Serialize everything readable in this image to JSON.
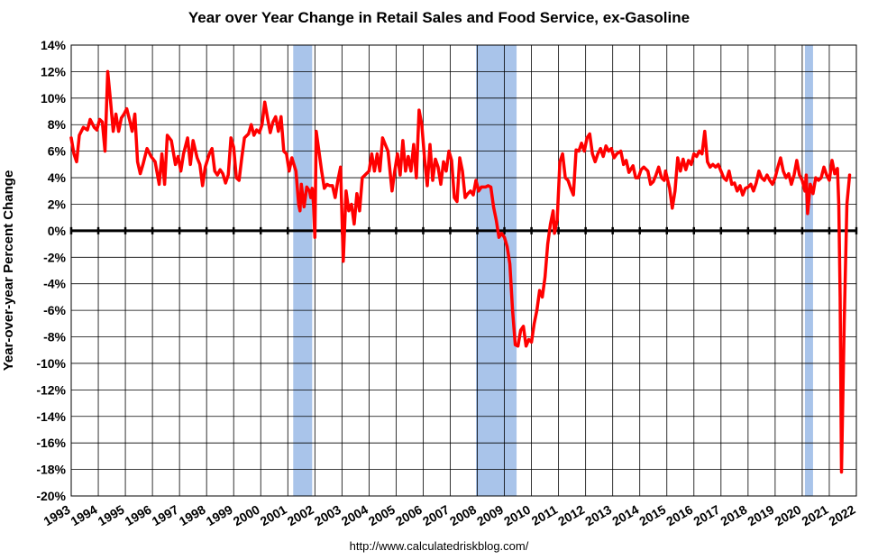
{
  "chart_data": {
    "type": "line",
    "title": "Year over Year Change in Retail Sales and Food Service, ex-Gasoline",
    "xlabel": "",
    "ylabel": "Year-over-year Percent Change",
    "source": "http://www.calculatedriskblog.com/",
    "xlim": [
      1993,
      2022
    ],
    "ylim": [
      -20,
      14
    ],
    "x_ticks": [
      "1993",
      "1994",
      "1995",
      "1996",
      "1997",
      "1998",
      "1999",
      "2000",
      "2001",
      "2002",
      "2003",
      "2004",
      "2005",
      "2006",
      "2007",
      "2008",
      "2009",
      "2010",
      "2011",
      "2012",
      "2013",
      "2014",
      "2015",
      "2016",
      "2017",
      "2018",
      "2019",
      "2020",
      "2021",
      "2022"
    ],
    "y_ticks": [
      "14%",
      "12%",
      "10%",
      "8%",
      "6%",
      "4%",
      "2%",
      "0%",
      "-2%",
      "-4%",
      "-6%",
      "-8%",
      "-10%",
      "-12%",
      "-14%",
      "-16%",
      "-18%",
      "-20%"
    ],
    "grid": true,
    "zero_line": true,
    "recessions": [
      {
        "start": 2001.2,
        "end": 2001.9
      },
      {
        "start": 2007.95,
        "end": 2009.45
      },
      {
        "start": 2020.1,
        "end": 2020.4
      }
    ],
    "recession_color": "#a9c4ea",
    "series": [
      {
        "color": "#ff0000",
        "points": [
          [
            1993.0,
            7.0
          ],
          [
            1993.1,
            5.8
          ],
          [
            1993.2,
            5.2
          ],
          [
            1993.3,
            7.2
          ],
          [
            1993.45,
            7.8
          ],
          [
            1993.6,
            7.6
          ],
          [
            1993.7,
            8.4
          ],
          [
            1993.85,
            7.8
          ],
          [
            1993.95,
            7.6
          ],
          [
            1994.05,
            8.4
          ],
          [
            1994.15,
            8.2
          ],
          [
            1994.25,
            6.0
          ],
          [
            1994.35,
            12.0
          ],
          [
            1994.45,
            9.8
          ],
          [
            1994.55,
            7.5
          ],
          [
            1994.65,
            8.8
          ],
          [
            1994.75,
            7.5
          ],
          [
            1994.85,
            8.5
          ],
          [
            1994.95,
            8.8
          ],
          [
            1995.05,
            9.2
          ],
          [
            1995.15,
            8.4
          ],
          [
            1995.25,
            7.5
          ],
          [
            1995.35,
            8.8
          ],
          [
            1995.45,
            5.2
          ],
          [
            1995.55,
            4.3
          ],
          [
            1995.65,
            5.0
          ],
          [
            1995.8,
            6.2
          ],
          [
            1995.95,
            5.6
          ],
          [
            1996.1,
            5.2
          ],
          [
            1996.25,
            3.5
          ],
          [
            1996.35,
            5.8
          ],
          [
            1996.45,
            3.5
          ],
          [
            1996.55,
            7.2
          ],
          [
            1996.7,
            6.8
          ],
          [
            1996.85,
            5.0
          ],
          [
            1996.95,
            5.6
          ],
          [
            1997.05,
            4.5
          ],
          [
            1997.15,
            5.8
          ],
          [
            1997.3,
            7.0
          ],
          [
            1997.4,
            5.0
          ],
          [
            1997.5,
            6.8
          ],
          [
            1997.65,
            5.5
          ],
          [
            1997.75,
            5.0
          ],
          [
            1997.85,
            3.4
          ],
          [
            1997.95,
            4.8
          ],
          [
            1998.1,
            5.8
          ],
          [
            1998.2,
            6.2
          ],
          [
            1998.3,
            4.5
          ],
          [
            1998.4,
            4.2
          ],
          [
            1998.5,
            4.6
          ],
          [
            1998.6,
            4.3
          ],
          [
            1998.7,
            3.6
          ],
          [
            1998.8,
            4.2
          ],
          [
            1998.9,
            7.0
          ],
          [
            1999.0,
            6.3
          ],
          [
            1999.1,
            4.0
          ],
          [
            1999.2,
            3.8
          ],
          [
            1999.3,
            5.5
          ],
          [
            1999.4,
            7.0
          ],
          [
            1999.55,
            7.3
          ],
          [
            1999.65,
            8.0
          ],
          [
            1999.75,
            7.2
          ],
          [
            1999.85,
            7.6
          ],
          [
            1999.95,
            7.4
          ],
          [
            2000.05,
            8.0
          ],
          [
            2000.15,
            9.7
          ],
          [
            2000.25,
            8.5
          ],
          [
            2000.35,
            7.4
          ],
          [
            2000.45,
            8.2
          ],
          [
            2000.55,
            8.6
          ],
          [
            2000.65,
            7.5
          ],
          [
            2000.75,
            8.6
          ],
          [
            2000.85,
            6.0
          ],
          [
            2000.95,
            5.8
          ],
          [
            2001.05,
            4.5
          ],
          [
            2001.15,
            5.5
          ],
          [
            2001.3,
            4.5
          ],
          [
            2001.4,
            2.0
          ],
          [
            2001.45,
            1.5
          ],
          [
            2001.5,
            3.5
          ],
          [
            2001.6,
            1.8
          ],
          [
            2001.7,
            3.3
          ],
          [
            2001.8,
            3.0
          ],
          [
            2001.85,
            2.5
          ],
          [
            2001.9,
            3.2
          ],
          [
            2001.95,
            2.0
          ],
          [
            2002.0,
            -0.5
          ],
          [
            2002.05,
            7.5
          ],
          [
            2002.15,
            6.0
          ],
          [
            2002.25,
            4.5
          ],
          [
            2002.35,
            3.2
          ],
          [
            2002.45,
            3.5
          ],
          [
            2002.55,
            3.4
          ],
          [
            2002.65,
            3.4
          ],
          [
            2002.75,
            2.5
          ],
          [
            2002.85,
            3.8
          ],
          [
            2002.95,
            4.8
          ],
          [
            2003.05,
            -2.3
          ],
          [
            2003.15,
            3.0
          ],
          [
            2003.25,
            1.5
          ],
          [
            2003.35,
            2.0
          ],
          [
            2003.45,
            0.5
          ],
          [
            2003.55,
            2.8
          ],
          [
            2003.65,
            1.5
          ],
          [
            2003.75,
            4.0
          ],
          [
            2003.9,
            4.3
          ],
          [
            2004.0,
            4.5
          ],
          [
            2004.1,
            5.8
          ],
          [
            2004.2,
            4.5
          ],
          [
            2004.3,
            5.8
          ],
          [
            2004.4,
            4.5
          ],
          [
            2004.5,
            7.0
          ],
          [
            2004.6,
            6.5
          ],
          [
            2004.7,
            6.0
          ],
          [
            2004.8,
            4.0
          ],
          [
            2004.85,
            3.0
          ],
          [
            2004.95,
            4.5
          ],
          [
            2005.05,
            5.8
          ],
          [
            2005.15,
            4.2
          ],
          [
            2005.25,
            6.8
          ],
          [
            2005.35,
            4.5
          ],
          [
            2005.45,
            5.6
          ],
          [
            2005.55,
            4.5
          ],
          [
            2005.65,
            6.5
          ],
          [
            2005.75,
            4.0
          ],
          [
            2005.85,
            9.1
          ],
          [
            2005.95,
            8.0
          ],
          [
            2006.05,
            5.5
          ],
          [
            2006.15,
            3.4
          ],
          [
            2006.25,
            6.5
          ],
          [
            2006.35,
            3.8
          ],
          [
            2006.45,
            5.4
          ],
          [
            2006.55,
            4.8
          ],
          [
            2006.65,
            3.5
          ],
          [
            2006.75,
            5.2
          ],
          [
            2006.85,
            4.5
          ],
          [
            2006.95,
            6.0
          ],
          [
            2007.05,
            5.3
          ],
          [
            2007.15,
            2.5
          ],
          [
            2007.25,
            2.2
          ],
          [
            2007.35,
            5.5
          ],
          [
            2007.45,
            4.5
          ],
          [
            2007.55,
            2.5
          ],
          [
            2007.65,
            2.8
          ],
          [
            2007.75,
            3.0
          ],
          [
            2007.85,
            2.7
          ],
          [
            2007.95,
            3.8
          ],
          [
            2008.05,
            3.0
          ],
          [
            2008.15,
            3.3
          ],
          [
            2008.3,
            3.3
          ],
          [
            2008.4,
            3.4
          ],
          [
            2008.5,
            3.3
          ],
          [
            2008.6,
            1.8
          ],
          [
            2008.7,
            0.8
          ],
          [
            2008.8,
            -0.5
          ],
          [
            2008.9,
            -0.2
          ],
          [
            2009.0,
            -0.5
          ],
          [
            2009.1,
            -1.2
          ],
          [
            2009.2,
            -2.5
          ],
          [
            2009.3,
            -6.0
          ],
          [
            2009.4,
            -8.6
          ],
          [
            2009.5,
            -8.7
          ],
          [
            2009.6,
            -7.5
          ],
          [
            2009.7,
            -7.2
          ],
          [
            2009.8,
            -8.7
          ],
          [
            2009.9,
            -8.2
          ],
          [
            2010.0,
            -8.4
          ],
          [
            2010.1,
            -7.0
          ],
          [
            2010.2,
            -6.0
          ],
          [
            2010.3,
            -4.5
          ],
          [
            2010.4,
            -5.0
          ],
          [
            2010.5,
            -3.5
          ],
          [
            2010.6,
            -1.0
          ],
          [
            2010.7,
            0.5
          ],
          [
            2010.8,
            1.5
          ],
          [
            2010.85,
            -0.2
          ],
          [
            2010.95,
            0.8
          ],
          [
            2011.05,
            5.2
          ],
          [
            2011.15,
            5.8
          ],
          [
            2011.25,
            4.0
          ],
          [
            2011.35,
            3.8
          ],
          [
            2011.45,
            3.2
          ],
          [
            2011.55,
            2.7
          ],
          [
            2011.65,
            6.1
          ],
          [
            2011.75,
            6.0
          ],
          [
            2011.85,
            6.6
          ],
          [
            2011.95,
            6.0
          ],
          [
            2012.05,
            7.0
          ],
          [
            2012.15,
            7.3
          ],
          [
            2012.25,
            5.8
          ],
          [
            2012.35,
            5.2
          ],
          [
            2012.45,
            5.8
          ],
          [
            2012.55,
            6.2
          ],
          [
            2012.65,
            5.6
          ],
          [
            2012.75,
            6.4
          ],
          [
            2012.85,
            6.0
          ],
          [
            2012.95,
            6.2
          ],
          [
            2013.05,
            5.5
          ],
          [
            2013.15,
            5.8
          ],
          [
            2013.3,
            6.0
          ],
          [
            2013.4,
            5.0
          ],
          [
            2013.5,
            5.3
          ],
          [
            2013.6,
            4.4
          ],
          [
            2013.75,
            4.9
          ],
          [
            2013.85,
            4.0
          ],
          [
            2013.95,
            4.0
          ],
          [
            2014.05,
            4.6
          ],
          [
            2014.15,
            4.8
          ],
          [
            2014.3,
            4.5
          ],
          [
            2014.4,
            3.5
          ],
          [
            2014.5,
            3.7
          ],
          [
            2014.6,
            4.2
          ],
          [
            2014.7,
            4.8
          ],
          [
            2014.8,
            4.0
          ],
          [
            2014.9,
            3.8
          ],
          [
            2014.95,
            4.5
          ],
          [
            2015.1,
            3.2
          ],
          [
            2015.2,
            1.7
          ],
          [
            2015.3,
            3.0
          ],
          [
            2015.4,
            5.5
          ],
          [
            2015.5,
            4.5
          ],
          [
            2015.6,
            5.4
          ],
          [
            2015.7,
            4.6
          ],
          [
            2015.8,
            5.3
          ],
          [
            2015.9,
            5.0
          ],
          [
            2016.0,
            5.8
          ],
          [
            2016.1,
            5.6
          ],
          [
            2016.2,
            6.0
          ],
          [
            2016.3,
            5.8
          ],
          [
            2016.4,
            7.5
          ],
          [
            2016.5,
            5.2
          ],
          [
            2016.6,
            4.8
          ],
          [
            2016.7,
            5.0
          ],
          [
            2016.8,
            4.8
          ],
          [
            2016.9,
            5.0
          ],
          [
            2017.0,
            4.5
          ],
          [
            2017.1,
            4.0
          ],
          [
            2017.2,
            3.8
          ],
          [
            2017.3,
            4.5
          ],
          [
            2017.4,
            3.5
          ],
          [
            2017.5,
            3.6
          ],
          [
            2017.6,
            3.0
          ],
          [
            2017.7,
            3.4
          ],
          [
            2017.8,
            2.7
          ],
          [
            2017.9,
            3.2
          ],
          [
            2018.0,
            3.3
          ],
          [
            2018.1,
            3.5
          ],
          [
            2018.2,
            3.0
          ],
          [
            2018.3,
            3.6
          ],
          [
            2018.4,
            4.5
          ],
          [
            2018.5,
            4.0
          ],
          [
            2018.6,
            3.8
          ],
          [
            2018.7,
            4.2
          ],
          [
            2018.8,
            3.8
          ],
          [
            2018.9,
            3.5
          ],
          [
            2019.0,
            4.0
          ],
          [
            2019.1,
            4.8
          ],
          [
            2019.2,
            5.5
          ],
          [
            2019.3,
            4.5
          ],
          [
            2019.4,
            4.0
          ],
          [
            2019.5,
            4.3
          ],
          [
            2019.6,
            3.5
          ],
          [
            2019.7,
            4.2
          ],
          [
            2019.8,
            5.3
          ],
          [
            2019.9,
            4.2
          ],
          [
            2020.0,
            3.8
          ],
          [
            2020.1,
            3.0
          ],
          [
            2020.15,
            4.2
          ],
          [
            2020.2,
            1.3
          ],
          [
            2020.3,
            3.5
          ],
          [
            2020.4,
            2.8
          ],
          [
            2020.5,
            4.0
          ],
          [
            2020.6,
            3.8
          ],
          [
            2020.7,
            4.0
          ],
          [
            2020.8,
            4.8
          ],
          [
            2020.9,
            4.2
          ],
          [
            2021.0,
            3.8
          ],
          [
            2021.1,
            5.3
          ],
          [
            2021.2,
            4.3
          ],
          [
            2021.3,
            4.7
          ],
          [
            2021.35,
            2.0
          ],
          [
            2021.4,
            -5.0
          ],
          [
            2021.45,
            -18.2
          ],
          [
            2021.55,
            -7.0
          ],
          [
            2021.65,
            2.0
          ],
          [
            2021.75,
            4.2
          ]
        ]
      }
    ]
  }
}
